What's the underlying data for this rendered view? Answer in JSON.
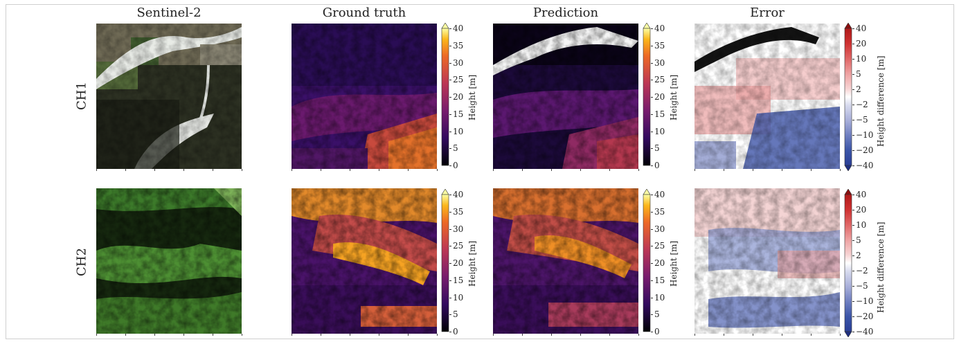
{
  "columns": [
    "Sentinel-2",
    "Ground truth",
    "Prediction",
    "Error"
  ],
  "rows": [
    "CH1",
    "CH2"
  ],
  "height_colorbar": {
    "label": "Height [m]",
    "ticks": [
      "40",
      "35",
      "30",
      "25",
      "20",
      "15",
      "10",
      "5",
      "0"
    ],
    "colormap": "inferno"
  },
  "error_colorbar": {
    "label": "Height difference [m]",
    "ticks": [
      "40",
      "20",
      "10",
      "5",
      "2",
      "−2",
      "−5",
      "−10",
      "−20",
      "−40"
    ],
    "colormap": "red-white-blue"
  }
}
